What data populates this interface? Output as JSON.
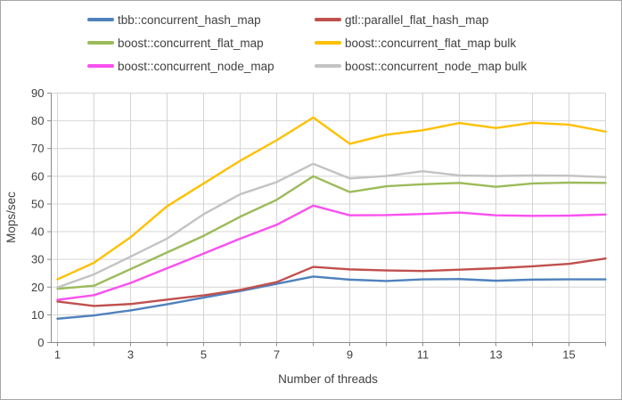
{
  "chart_data": {
    "type": "line",
    "title": "",
    "xlabel": "Number of threads",
    "ylabel": "Mops/sec",
    "x": [
      1,
      2,
      3,
      4,
      5,
      6,
      7,
      8,
      9,
      10,
      11,
      12,
      13,
      14,
      15,
      16
    ],
    "x_tick_label_values": [
      1,
      3,
      5,
      7,
      9,
      11,
      13,
      15
    ],
    "ylim": [
      0,
      90
    ],
    "ytick_step": 10,
    "grid": true,
    "legend_position": "top",
    "series": [
      {
        "name": "tbb::concurrent_hash_map",
        "color": "#4F81BD",
        "values": [
          8.6,
          9.8,
          11.6,
          13.8,
          16.2,
          18.6,
          21.2,
          23.8,
          22.7,
          22.2,
          22.8,
          22.9,
          22.3,
          22.7,
          22.8,
          22.8
        ]
      },
      {
        "name": "gtl::parallel_flat_hash_map",
        "color": "#C0504D",
        "values": [
          14.8,
          13.2,
          13.9,
          15.5,
          17.0,
          19.0,
          21.8,
          27.3,
          26.4,
          26.0,
          25.8,
          26.3,
          26.8,
          27.5,
          28.4,
          30.3
        ]
      },
      {
        "name": "boost::concurrent_flat_map",
        "color": "#9BBB59",
        "values": [
          19.4,
          20.5,
          26.5,
          32.5,
          38.5,
          45.4,
          51.5,
          60.0,
          54.3,
          56.4,
          57.1,
          57.6,
          56.2,
          57.4,
          57.7,
          57.6
        ]
      },
      {
        "name": "boost::concurrent_flat_map bulk",
        "color": "#FFC000",
        "values": [
          22.8,
          28.8,
          38.0,
          49.2,
          57.4,
          65.6,
          73.0,
          81.2,
          71.7,
          75.0,
          76.6,
          79.2,
          77.4,
          79.3,
          78.6,
          76.1
        ]
      },
      {
        "name": "boost::concurrent_node_map",
        "color": "#FA50F0",
        "values": [
          15.4,
          17.1,
          21.5,
          26.8,
          32.1,
          37.5,
          42.5,
          49.4,
          45.9,
          46.0,
          46.4,
          46.9,
          45.9,
          45.7,
          45.8,
          46.2
        ]
      },
      {
        "name": "boost::concurrent_node_map bulk",
        "color": "#C3C3C3",
        "values": [
          19.9,
          24.6,
          31.0,
          37.5,
          46.3,
          53.5,
          57.9,
          64.5,
          59.2,
          60.1,
          61.8,
          60.3,
          60.1,
          60.3,
          60.2,
          59.7
        ]
      }
    ]
  },
  "style": {
    "gridline_color": "#D4D4D4",
    "axis_color": "#8C8C8C",
    "text_color": "#404040",
    "background": "#FFFFFF"
  }
}
